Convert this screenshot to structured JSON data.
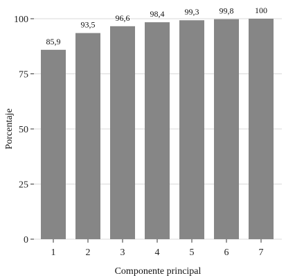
{
  "colors": {
    "bar": "#868686",
    "grid": "#d9d9d9",
    "axis": "#333333",
    "background": "#ffffff"
  },
  "chart_data": {
    "type": "bar",
    "title": "",
    "xlabel": "Componente principal",
    "ylabel": "Porcentaje",
    "categories": [
      "1",
      "2",
      "3",
      "4",
      "5",
      "6",
      "7"
    ],
    "values": [
      85.9,
      93.5,
      96.6,
      98.4,
      99.3,
      99.8,
      100
    ],
    "value_labels": [
      "85,9",
      "93,5",
      "96,6",
      "98,4",
      "99,3",
      "99,8",
      "100"
    ],
    "ylim": [
      0,
      100
    ],
    "yticks": [
      0,
      25,
      50,
      75,
      100
    ],
    "ytick_labels": [
      "0",
      "25",
      "50",
      "75",
      "100"
    ],
    "grid": true,
    "legend": "none"
  }
}
